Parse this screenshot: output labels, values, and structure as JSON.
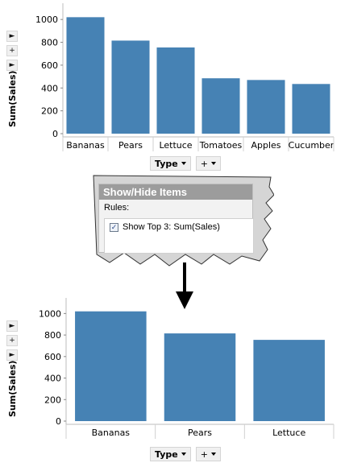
{
  "top_chart": {
    "ylabel": "Sum(Sales)",
    "axis_button": "Type",
    "add_button": "+"
  },
  "dialog": {
    "title": "Show/Hide Items",
    "rules_label": "Rules:",
    "rule_text": "Show Top 3: Sum(Sales)",
    "rule_checked": true
  },
  "bottom_chart": {
    "ylabel": "Sum(Sales)",
    "axis_button": "Type",
    "add_button": "+"
  },
  "colors": {
    "bar": "#4682b4",
    "grid": "#d9d9d9",
    "title_bar": "#9c9c9c"
  },
  "icons": [
    "arrow-down-icon",
    "chevron-right-icon",
    "chevron-down-icon",
    "plus-icon",
    "checkbox-icon"
  ],
  "chart_data": [
    {
      "type": "bar",
      "categories": [
        "Bananas",
        "Pears",
        "Lettuce",
        "Tomatoes",
        "Apples",
        "Cucumber"
      ],
      "values": [
        1020,
        815,
        755,
        485,
        470,
        435
      ],
      "ylabel": "Sum(Sales)",
      "xlabel": "Type",
      "ylim": [
        0,
        1100
      ],
      "yticks": [
        0,
        200,
        400,
        600,
        800,
        1000
      ],
      "grid": false
    },
    {
      "type": "bar",
      "categories": [
        "Bananas",
        "Pears",
        "Lettuce"
      ],
      "values": [
        1020,
        815,
        755
      ],
      "ylabel": "Sum(Sales)",
      "xlabel": "Type",
      "ylim": [
        0,
        1100
      ],
      "yticks": [
        0,
        200,
        400,
        600,
        800,
        1000
      ],
      "grid": false
    }
  ]
}
